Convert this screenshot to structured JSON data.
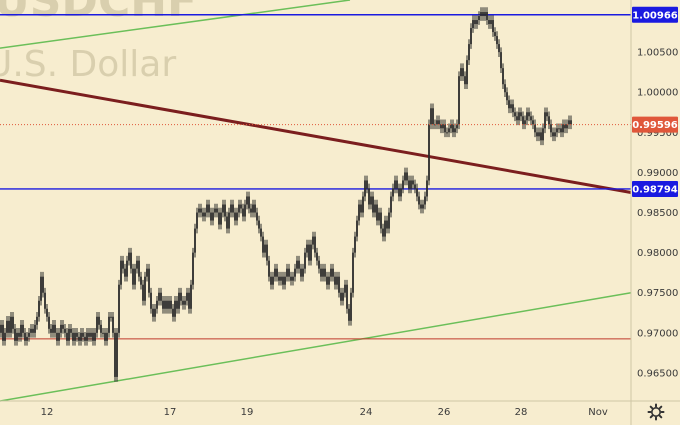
{
  "watermark": {
    "symbol": "USDCHF",
    "description": "U.S. Dollar"
  },
  "colors": {
    "background": "#f7edcf",
    "blue_level": "#1a1ae0",
    "red_level": "#c0392b",
    "green_trend": "#6bbf59",
    "maroon_trend": "#7b1e1e",
    "candle": "#2a2a2a",
    "current_price": "#e0573a"
  },
  "chart_data": {
    "type": "candlestick",
    "y_axis_ticks": [
      "1.00500",
      "1.00000",
      "0.99500",
      "0.99000",
      "0.98500",
      "0.98000",
      "0.97500",
      "0.97000",
      "0.96500"
    ],
    "x_axis_ticks": [
      "12",
      "17",
      "19",
      "24",
      "26",
      "28",
      "Nov"
    ],
    "ylim": [
      0.9615,
      1.0115
    ],
    "horizontal_levels": [
      {
        "label": "1.00966",
        "value": 1.00966,
        "style": "blue",
        "labelled": true
      },
      {
        "label": "0.98794",
        "value": 0.98794,
        "style": "blue",
        "labelled": true
      },
      {
        "label": "0.96925",
        "value": 0.96925,
        "style": "red",
        "labelled": false
      }
    ],
    "current_price": {
      "label": "0.99596",
      "value": 0.99596
    },
    "trend_lines": [
      {
        "name": "upper-green",
        "from": {
          "x": "Oct 07",
          "y": 1.0055
        },
        "to": {
          "x": "Oct 22",
          "y": 1.0115
        }
      },
      {
        "name": "lower-green",
        "from": {
          "x": "Oct 07",
          "y": 0.9615
        },
        "to": {
          "x": "Nov 01",
          "y": 0.975
        }
      },
      {
        "name": "maroon-resistance",
        "from": {
          "x": "Oct 07",
          "y": 1.0015
        },
        "to": {
          "x": "Nov 01",
          "y": 0.9875
        }
      }
    ],
    "price_path": [
      [
        0,
        0.97
      ],
      [
        2,
        0.971
      ],
      [
        4,
        0.969
      ],
      [
        6,
        0.97
      ],
      [
        8,
        0.9715
      ],
      [
        10,
        0.97
      ],
      [
        12,
        0.972
      ],
      [
        14,
        0.9705
      ],
      [
        16,
        0.969
      ],
      [
        18,
        0.97
      ],
      [
        20,
        0.9695
      ],
      [
        22,
        0.971
      ],
      [
        24,
        0.97
      ],
      [
        26,
        0.969
      ],
      [
        28,
        0.9695
      ],
      [
        30,
        0.97
      ],
      [
        32,
        0.9705
      ],
      [
        34,
        0.97
      ],
      [
        36,
        0.971
      ],
      [
        38,
        0.972
      ],
      [
        40,
        0.974
      ],
      [
        42,
        0.977
      ],
      [
        44,
        0.975
      ],
      [
        46,
        0.973
      ],
      [
        48,
        0.972
      ],
      [
        50,
        0.9705
      ],
      [
        52,
        0.97
      ],
      [
        54,
        0.971
      ],
      [
        56,
        0.97
      ],
      [
        58,
        0.969
      ],
      [
        60,
        0.97
      ],
      [
        62,
        0.971
      ],
      [
        64,
        0.9705
      ],
      [
        66,
        0.97
      ],
      [
        68,
        0.969
      ],
      [
        70,
        0.9705
      ],
      [
        72,
        0.97
      ],
      [
        74,
        0.969
      ],
      [
        76,
        0.97
      ],
      [
        78,
        0.9695
      ],
      [
        80,
        0.969
      ],
      [
        82,
        0.97
      ],
      [
        84,
        0.9695
      ],
      [
        86,
        0.969
      ],
      [
        88,
        0.97
      ],
      [
        90,
        0.9695
      ],
      [
        92,
        0.97
      ],
      [
        94,
        0.969
      ],
      [
        96,
        0.97
      ],
      [
        98,
        0.972
      ],
      [
        100,
        0.971
      ],
      [
        102,
        0.97
      ],
      [
        104,
        0.97
      ],
      [
        106,
        0.969
      ],
      [
        108,
        0.97
      ],
      [
        110,
        0.972
      ],
      [
        112,
        0.972
      ],
      [
        114,
        0.97
      ],
      [
        116,
        0.9645
      ],
      [
        118,
        0.97
      ],
      [
        120,
        0.976
      ],
      [
        122,
        0.979
      ],
      [
        124,
        0.978
      ],
      [
        126,
        0.977
      ],
      [
        128,
        0.979
      ],
      [
        130,
        0.98
      ],
      [
        132,
        0.978
      ],
      [
        134,
        0.976
      ],
      [
        136,
        0.978
      ],
      [
        138,
        0.979
      ],
      [
        140,
        0.977
      ],
      [
        142,
        0.976
      ],
      [
        144,
        0.974
      ],
      [
        146,
        0.977
      ],
      [
        148,
        0.978
      ],
      [
        150,
        0.975
      ],
      [
        152,
        0.973
      ],
      [
        154,
        0.972
      ],
      [
        156,
        0.973
      ],
      [
        158,
        0.974
      ],
      [
        160,
        0.975
      ],
      [
        162,
        0.974
      ],
      [
        164,
        0.973
      ],
      [
        166,
        0.974
      ],
      [
        168,
        0.973
      ],
      [
        170,
        0.974
      ],
      [
        172,
        0.973
      ],
      [
        174,
        0.972
      ],
      [
        176,
        0.974
      ],
      [
        178,
        0.973
      ],
      [
        180,
        0.975
      ],
      [
        182,
        0.974
      ],
      [
        184,
        0.9735
      ],
      [
        186,
        0.974
      ],
      [
        188,
        0.975
      ],
      [
        190,
        0.973
      ],
      [
        192,
        0.976
      ],
      [
        194,
        0.98
      ],
      [
        196,
        0.983
      ],
      [
        198,
        0.985
      ],
      [
        200,
        0.9855
      ],
      [
        202,
        0.985
      ],
      [
        204,
        0.9845
      ],
      [
        206,
        0.985
      ],
      [
        208,
        0.986
      ],
      [
        210,
        0.985
      ],
      [
        212,
        0.984
      ],
      [
        214,
        0.985
      ],
      [
        216,
        0.9855
      ],
      [
        218,
        0.985
      ],
      [
        220,
        0.9835
      ],
      [
        222,
        0.985
      ],
      [
        224,
        0.986
      ],
      [
        226,
        0.9845
      ],
      [
        228,
        0.983
      ],
      [
        230,
        0.985
      ],
      [
        232,
        0.986
      ],
      [
        234,
        0.985
      ],
      [
        236,
        0.984
      ],
      [
        238,
        0.985
      ],
      [
        240,
        0.986
      ],
      [
        242,
        0.9855
      ],
      [
        244,
        0.9845
      ],
      [
        246,
        0.986
      ],
      [
        248,
        0.987
      ],
      [
        250,
        0.9855
      ],
      [
        252,
        0.985
      ],
      [
        254,
        0.986
      ],
      [
        256,
        0.985
      ],
      [
        258,
        0.984
      ],
      [
        260,
        0.983
      ],
      [
        262,
        0.982
      ],
      [
        264,
        0.98
      ],
      [
        266,
        0.981
      ],
      [
        268,
        0.979
      ],
      [
        270,
        0.977
      ],
      [
        272,
        0.976
      ],
      [
        274,
        0.977
      ],
      [
        276,
        0.978
      ],
      [
        278,
        0.977
      ],
      [
        280,
        0.9765
      ],
      [
        282,
        0.977
      ],
      [
        284,
        0.976
      ],
      [
        286,
        0.977
      ],
      [
        288,
        0.978
      ],
      [
        290,
        0.977
      ],
      [
        292,
        0.9765
      ],
      [
        294,
        0.977
      ],
      [
        296,
        0.978
      ],
      [
        298,
        0.979
      ],
      [
        300,
        0.978
      ],
      [
        302,
        0.977
      ],
      [
        304,
        0.978
      ],
      [
        306,
        0.98
      ],
      [
        308,
        0.981
      ],
      [
        310,
        0.979
      ],
      [
        312,
        0.981
      ],
      [
        314,
        0.982
      ],
      [
        316,
        0.98
      ],
      [
        318,
        0.979
      ],
      [
        320,
        0.978
      ],
      [
        322,
        0.977
      ],
      [
        324,
        0.978
      ],
      [
        326,
        0.977
      ],
      [
        328,
        0.976
      ],
      [
        330,
        0.977
      ],
      [
        332,
        0.978
      ],
      [
        334,
        0.977
      ],
      [
        336,
        0.976
      ],
      [
        338,
        0.977
      ],
      [
        340,
        0.975
      ],
      [
        342,
        0.974
      ],
      [
        344,
        0.975
      ],
      [
        346,
        0.976
      ],
      [
        348,
        0.973
      ],
      [
        350,
        0.9715
      ],
      [
        352,
        0.975
      ],
      [
        354,
        0.98
      ],
      [
        356,
        0.982
      ],
      [
        358,
        0.984
      ],
      [
        360,
        0.986
      ],
      [
        362,
        0.985
      ],
      [
        364,
        0.987
      ],
      [
        366,
        0.989
      ],
      [
        368,
        0.988
      ],
      [
        370,
        0.986
      ],
      [
        372,
        0.987
      ],
      [
        374,
        0.985
      ],
      [
        376,
        0.986
      ],
      [
        378,
        0.984
      ],
      [
        380,
        0.985
      ],
      [
        382,
        0.983
      ],
      [
        384,
        0.982
      ],
      [
        386,
        0.984
      ],
      [
        388,
        0.983
      ],
      [
        390,
        0.985
      ],
      [
        392,
        0.987
      ],
      [
        394,
        0.988
      ],
      [
        396,
        0.989
      ],
      [
        398,
        0.988
      ],
      [
        400,
        0.987
      ],
      [
        402,
        0.988
      ],
      [
        404,
        0.989
      ],
      [
        406,
        0.99
      ],
      [
        408,
        0.989
      ],
      [
        410,
        0.988
      ],
      [
        412,
        0.989
      ],
      [
        414,
        0.9885
      ],
      [
        416,
        0.988
      ],
      [
        418,
        0.987
      ],
      [
        420,
        0.986
      ],
      [
        422,
        0.9855
      ],
      [
        424,
        0.986
      ],
      [
        426,
        0.987
      ],
      [
        428,
        0.989
      ],
      [
        430,
        0.996
      ],
      [
        432,
        0.998
      ],
      [
        434,
        0.996
      ],
      [
        436,
        0.996
      ],
      [
        438,
        0.9965
      ],
      [
        440,
        0.996
      ],
      [
        442,
        0.9955
      ],
      [
        444,
        0.996
      ],
      [
        446,
        0.995
      ],
      [
        448,
        0.995
      ],
      [
        450,
        0.9955
      ],
      [
        452,
        0.996
      ],
      [
        454,
        0.995
      ],
      [
        456,
        0.9955
      ],
      [
        458,
        0.996
      ],
      [
        460,
        1.002
      ],
      [
        462,
        1.003
      ],
      [
        464,
        1.002
      ],
      [
        466,
        1.001
      ],
      [
        468,
        1.004
      ],
      [
        470,
        1.006
      ],
      [
        472,
        1.008
      ],
      [
        474,
        1.009
      ],
      [
        476,
        1.0085
      ],
      [
        478,
        1.009
      ],
      [
        480,
        1.0095
      ],
      [
        482,
        1.01
      ],
      [
        484,
        1.0095
      ],
      [
        486,
        1.01
      ],
      [
        488,
        1.009
      ],
      [
        490,
        1.0085
      ],
      [
        492,
        1.009
      ],
      [
        494,
        1.0075
      ],
      [
        496,
        1.007
      ],
      [
        498,
        1.006
      ],
      [
        500,
        1.005
      ],
      [
        502,
        1.003
      ],
      [
        504,
        1.001
      ],
      [
        506,
        1.0
      ],
      [
        508,
        0.999
      ],
      [
        510,
        0.998
      ],
      [
        512,
        0.9985
      ],
      [
        514,
        0.9975
      ],
      [
        516,
        0.997
      ],
      [
        518,
        0.9965
      ],
      [
        520,
        0.9975
      ],
      [
        522,
        0.997
      ],
      [
        524,
        0.996
      ],
      [
        526,
        0.9965
      ],
      [
        528,
        0.9975
      ],
      [
        530,
        0.997
      ],
      [
        532,
        0.9965
      ],
      [
        534,
        0.996
      ],
      [
        536,
        0.995
      ],
      [
        538,
        0.9945
      ],
      [
        540,
        0.995
      ],
      [
        542,
        0.994
      ],
      [
        544,
        0.9955
      ],
      [
        546,
        0.9975
      ],
      [
        548,
        0.997
      ],
      [
        550,
        0.996
      ],
      [
        552,
        0.995
      ],
      [
        554,
        0.9945
      ],
      [
        556,
        0.995
      ],
      [
        558,
        0.9955
      ],
      [
        560,
        0.9955
      ],
      [
        562,
        0.995
      ],
      [
        564,
        0.996
      ],
      [
        566,
        0.9955
      ],
      [
        568,
        0.996
      ],
      [
        570,
        0.9965
      ],
      [
        572,
        0.996
      ]
    ]
  }
}
